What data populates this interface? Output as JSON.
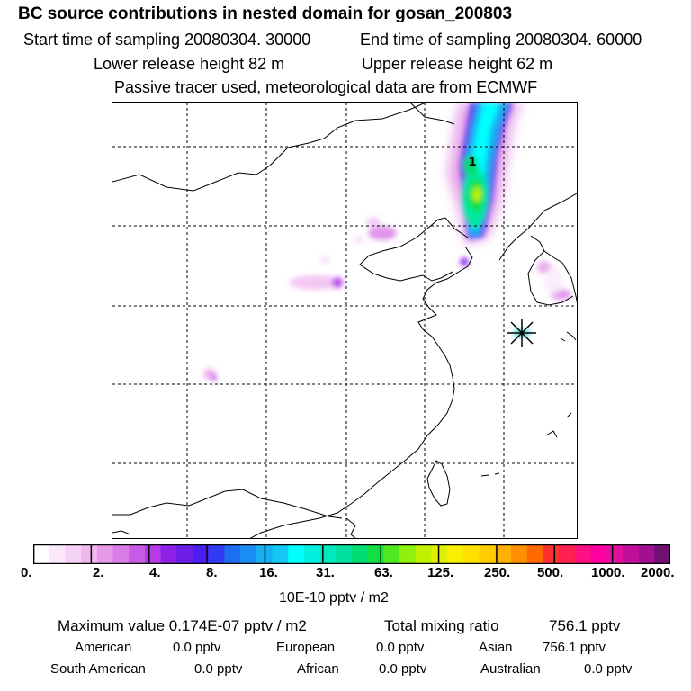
{
  "header": {
    "title": "BC  source contributions in nested domain for gosan_200803",
    "start_time": "Start time of sampling 20080304. 30000",
    "end_time": "End time of sampling 20080304. 60000",
    "lower_release": "Lower release height   82 m",
    "upper_release": "Upper release height   62 m",
    "tracer_note": "Passive tracer used, meteorological data are from ECMWF"
  },
  "map": {
    "marker_label": "1",
    "receptor_marker": "star-icon"
  },
  "colorbar": {
    "tick_labels": [
      "0.",
      "2.",
      "4.",
      "8.",
      "16.",
      "31.",
      "63.",
      "125.",
      "250.",
      "500.",
      "1000.",
      "2000."
    ],
    "units": "10E-10 pptv / m2",
    "colors": [
      "#ffffff",
      "#fbe8fb",
      "#f6d2f6",
      "#f0b8f0",
      "#e59ae8",
      "#d97ce5",
      "#c85be6",
      "#b53ae8",
      "#8c20e6",
      "#6a1ee8",
      "#4a1ef0",
      "#2f3cf2",
      "#1e6ef2",
      "#1a8ef2",
      "#18aef2",
      "#14c8f2",
      "#00ffff",
      "#00f0e0",
      "#00e8c0",
      "#00e0a0",
      "#00dd70",
      "#10e040",
      "#50e820",
      "#90f010",
      "#c0f000",
      "#e0f000",
      "#f8f000",
      "#ffe000",
      "#ffcc00",
      "#ffb000",
      "#ff9000",
      "#ff6a00",
      "#ff3030",
      "#ff2050",
      "#ff1080",
      "#ff00a0",
      "#e010a0",
      "#c0109a",
      "#a01090",
      "#701070"
    ]
  },
  "stats": {
    "max_value": "Maximum value  0.174E-07 pptv / m2",
    "total_mixing": "Total mixing ratio",
    "total_mixing_value": "756.1 pptv",
    "american_label": "American",
    "american_value": "0.0 pptv",
    "european_label": "European",
    "european_value": "0.0 pptv",
    "asian_label": "Asian",
    "asian_value": "756.1 pptv",
    "south_american_label": "South American",
    "south_american_value": "0.0 pptv",
    "african_label": "African",
    "african_value": "0.0 pptv",
    "australian_label": "Australian",
    "australian_value": "0.0 pptv"
  }
}
